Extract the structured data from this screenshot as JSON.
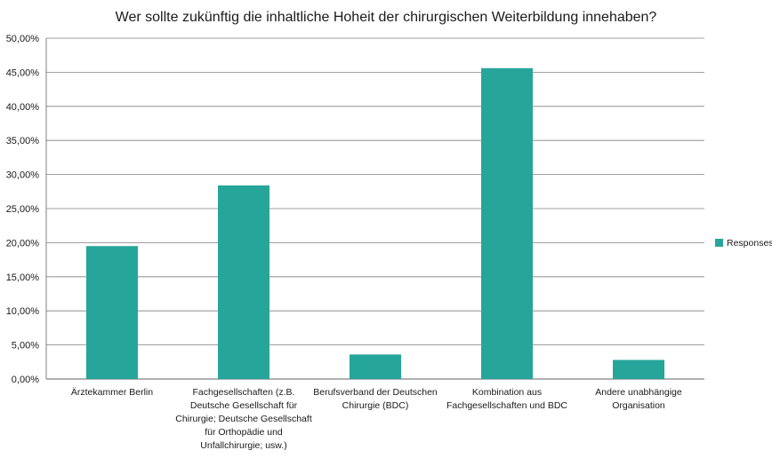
{
  "chart_data": {
    "type": "bar",
    "title": "Wer sollte zukünftig die inhaltliche Hoheit der chirurgischen Weiterbildung innehaben?",
    "categories": [
      [
        "Ärztekammer Berlin"
      ],
      [
        "Fachgesellschaften (z.B.",
        "Deutsche Gesellschaft für",
        "Chirurgie; Deutsche Gesellschaft",
        "für Orthopädie und",
        "Unfallchirurgie; usw.)"
      ],
      [
        "Berufsverband der Deutschen",
        "Chirurgie (BDC)"
      ],
      [
        "Kombination aus",
        "Fachgesellschaften und BDC"
      ],
      [
        "Andere unabhängige",
        "Organisation"
      ]
    ],
    "series": [
      {
        "name": "Responses",
        "values": [
          19.5,
          28.4,
          3.6,
          45.6,
          2.8
        ],
        "color": "#26a69a"
      }
    ],
    "ylim": [
      0,
      50
    ],
    "yticks": [
      "0,00%",
      "5,00%",
      "10,00%",
      "15,00%",
      "20,00%",
      "25,00%",
      "30,00%",
      "35,00%",
      "40,00%",
      "45,00%",
      "50,00%"
    ],
    "xlabel": "",
    "ylabel": "",
    "grid": true,
    "legend_position": "right",
    "colors": {
      "bar": "#26a69a",
      "grid": "#808080",
      "axis": "#808080"
    }
  }
}
